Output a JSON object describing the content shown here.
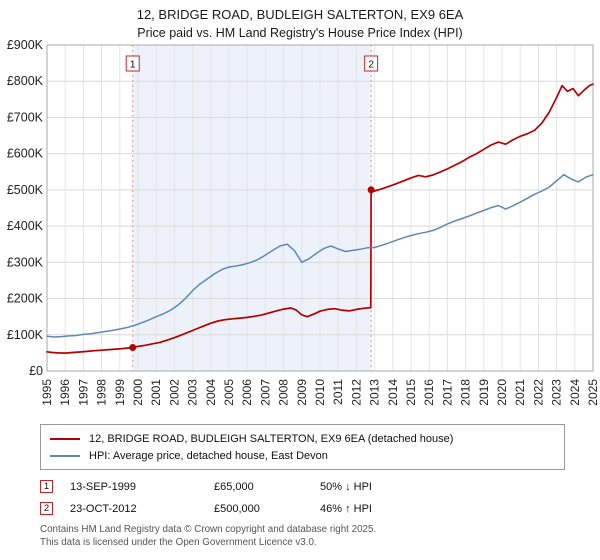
{
  "page": {
    "title": "12, BRIDGE ROAD, BUDLEIGH SALTERTON, EX9 6EA",
    "subtitle": "Price paid vs. HM Land Registry's House Price Index (HPI)"
  },
  "colors": {
    "accent_red": "#cc2222",
    "property_red": "#b40000",
    "hpi_blue": "#5e87b8",
    "vline_pink": "#e89090",
    "band_blue": "#edf2fa"
  },
  "chart_data": {
    "type": "line",
    "title": "12, BRIDGE ROAD, BUDLEIGH SALTERTON, EX9 6EA",
    "subtitle": "Price paid vs. HM Land Registry's House Price Index (HPI)",
    "x_range": [
      1995,
      2025
    ],
    "ylim": [
      0,
      900000
    ],
    "grid": true,
    "legend_position": "bottom",
    "background_band": {
      "x0": 1999.71,
      "x1": 2012.81,
      "color": "#edf2fa"
    },
    "vline_color": "#e89090",
    "ytick_values": [
      0,
      100000,
      200000,
      300000,
      400000,
      500000,
      600000,
      700000,
      800000,
      900000
    ],
    "ytick_labels": [
      "£0",
      "£100K",
      "£200K",
      "£300K",
      "£400K",
      "£500K",
      "£600K",
      "£700K",
      "£800K",
      "£900K"
    ],
    "xtick_labels": [
      "1995",
      "1996",
      "1997",
      "1998",
      "1999",
      "2000",
      "2001",
      "2002",
      "2003",
      "2004",
      "2005",
      "2006",
      "2007",
      "2008",
      "2009",
      "2010",
      "2011",
      "2012",
      "2013",
      "2014",
      "2015",
      "2016",
      "2017",
      "2018",
      "2019",
      "2020",
      "2021",
      "2022",
      "2023",
      "2024",
      "2025"
    ],
    "series": [
      {
        "name": "12, BRIDGE ROAD, BUDLEIGH SALTERTON, EX9 6EA (detached house)",
        "color": "#b40000",
        "width": 1.7,
        "x": [
          1995.0,
          1995.3,
          1995.6,
          1996.0,
          1996.4,
          1996.8,
          1997.2,
          1997.6,
          1998.0,
          1998.4,
          1998.8,
          1999.2,
          1999.71,
          2000.0,
          2000.4,
          2000.8,
          2001.2,
          2001.6,
          2002.0,
          2002.4,
          2002.8,
          2003.2,
          2003.6,
          2004.0,
          2004.4,
          2004.8,
          2005.2,
          2005.6,
          2006.0,
          2006.4,
          2006.8,
          2007.2,
          2007.6,
          2008.0,
          2008.4,
          2008.7,
          2009.0,
          2009.3,
          2009.7,
          2010.0,
          2010.4,
          2010.8,
          2011.2,
          2011.6,
          2012.0,
          2012.4,
          2012.79,
          2012.81,
          2013.0,
          2013.4,
          2013.8,
          2014.2,
          2014.6,
          2015.0,
          2015.4,
          2015.8,
          2016.2,
          2016.6,
          2017.0,
          2017.4,
          2017.8,
          2018.2,
          2018.6,
          2019.0,
          2019.4,
          2019.8,
          2020.2,
          2020.6,
          2021.0,
          2021.4,
          2021.8,
          2022.2,
          2022.6,
          2023.0,
          2023.3,
          2023.6,
          2023.9,
          2024.2,
          2024.5,
          2024.8,
          2025.0
        ],
        "y": [
          53000,
          51000,
          50000,
          49500,
          51000,
          52500,
          54000,
          56000,
          57500,
          59000,
          60500,
          62000,
          65000,
          68000,
          71000,
          75000,
          79000,
          85000,
          92000,
          100000,
          108000,
          116000,
          124000,
          132000,
          138000,
          142000,
          144000,
          146000,
          148000,
          151000,
          155000,
          160000,
          166000,
          171000,
          174000,
          168000,
          155000,
          150000,
          158000,
          165000,
          170000,
          172000,
          168000,
          166000,
          170000,
          173000,
          175000,
          500000,
          497000,
          503000,
          510000,
          517000,
          525000,
          533000,
          540000,
          536000,
          541000,
          549000,
          558000,
          568000,
          578000,
          590000,
          600000,
          612000,
          624000,
          632000,
          626000,
          638000,
          648000,
          655000,
          665000,
          685000,
          715000,
          755000,
          788000,
          772000,
          780000,
          760000,
          775000,
          788000,
          792000
        ]
      },
      {
        "name": "HPI: Average price, detached house, East Devon",
        "color": "#5e87b8",
        "width": 1.5,
        "x": [
          1995.0,
          1995.4,
          1995.8,
          1996.2,
          1996.6,
          1997.0,
          1997.4,
          1997.8,
          1998.2,
          1998.6,
          1999.0,
          1999.4,
          1999.8,
          2000.2,
          2000.6,
          2001.0,
          2001.4,
          2001.8,
          2002.2,
          2002.6,
          2003.0,
          2003.4,
          2003.8,
          2004.2,
          2004.6,
          2005.0,
          2005.4,
          2005.8,
          2006.2,
          2006.6,
          2007.0,
          2007.4,
          2007.8,
          2008.2,
          2008.6,
          2009.0,
          2009.4,
          2009.8,
          2010.2,
          2010.6,
          2011.0,
          2011.4,
          2011.8,
          2012.2,
          2012.6,
          2013.0,
          2013.4,
          2013.8,
          2014.2,
          2014.6,
          2015.0,
          2015.4,
          2015.8,
          2016.2,
          2016.6,
          2017.0,
          2017.4,
          2017.8,
          2018.2,
          2018.6,
          2019.0,
          2019.4,
          2019.8,
          2020.2,
          2020.6,
          2021.0,
          2021.4,
          2021.8,
          2022.2,
          2022.6,
          2023.0,
          2023.4,
          2023.8,
          2024.2,
          2024.6,
          2025.0
        ],
        "y": [
          96000,
          94000,
          95000,
          97000,
          98000,
          101000,
          103000,
          106000,
          109000,
          112000,
          116000,
          120000,
          126000,
          133000,
          141000,
          150000,
          158000,
          168000,
          182000,
          200000,
          222000,
          240000,
          254000,
          268000,
          280000,
          287000,
          290000,
          294000,
          300000,
          308000,
          320000,
          333000,
          345000,
          350000,
          332000,
          300000,
          310000,
          325000,
          338000,
          345000,
          337000,
          330000,
          333000,
          336000,
          340000,
          341000,
          347000,
          354000,
          361000,
          368000,
          374000,
          379000,
          383000,
          388000,
          396000,
          406000,
          414000,
          421000,
          428000,
          436000,
          443000,
          451000,
          457000,
          447000,
          456000,
          466000,
          477000,
          488000,
          497000,
          508000,
          525000,
          542000,
          530000,
          522000,
          535000,
          542000
        ]
      }
    ],
    "markers": [
      {
        "label": "1",
        "x": 1999.71,
        "y": 65000
      },
      {
        "label": "2",
        "x": 2012.81,
        "y": 500000
      }
    ]
  },
  "transactions": [
    {
      "num": "1",
      "date": "13-SEP-1999",
      "price": "£65,000",
      "hpi": "50% ↓ HPI"
    },
    {
      "num": "2",
      "date": "23-OCT-2012",
      "price": "£500,000",
      "hpi": "46% ↑ HPI"
    }
  ],
  "footer": {
    "line1": "Contains HM Land Registry data © Crown copyright and database right 2025.",
    "line2": "This data is licensed under the Open Government Licence v3.0."
  }
}
